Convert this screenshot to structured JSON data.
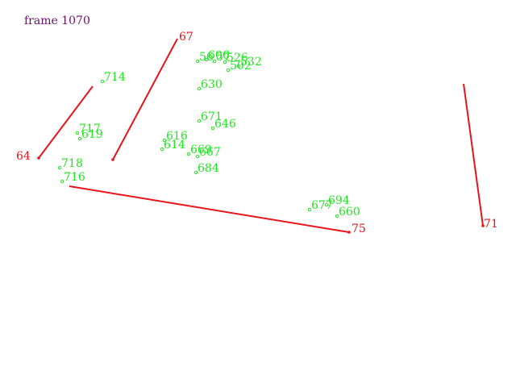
{
  "frame_label": "frame 1070",
  "colors": {
    "frame_label": "#6a0f6a",
    "segment": "#e8141c",
    "point": "#1ee81e"
  },
  "segments": [
    {
      "label": "64"
    },
    {
      "label": "67"
    },
    {
      "label": "75"
    },
    {
      "label": "71"
    }
  ],
  "points": [
    "714",
    "56",
    "606",
    "57",
    "526",
    "532",
    "502",
    "630",
    "671",
    "646",
    "717",
    "619",
    "616",
    "614",
    "669",
    "667",
    "718",
    "716",
    "684",
    "694",
    "677",
    "660"
  ]
}
